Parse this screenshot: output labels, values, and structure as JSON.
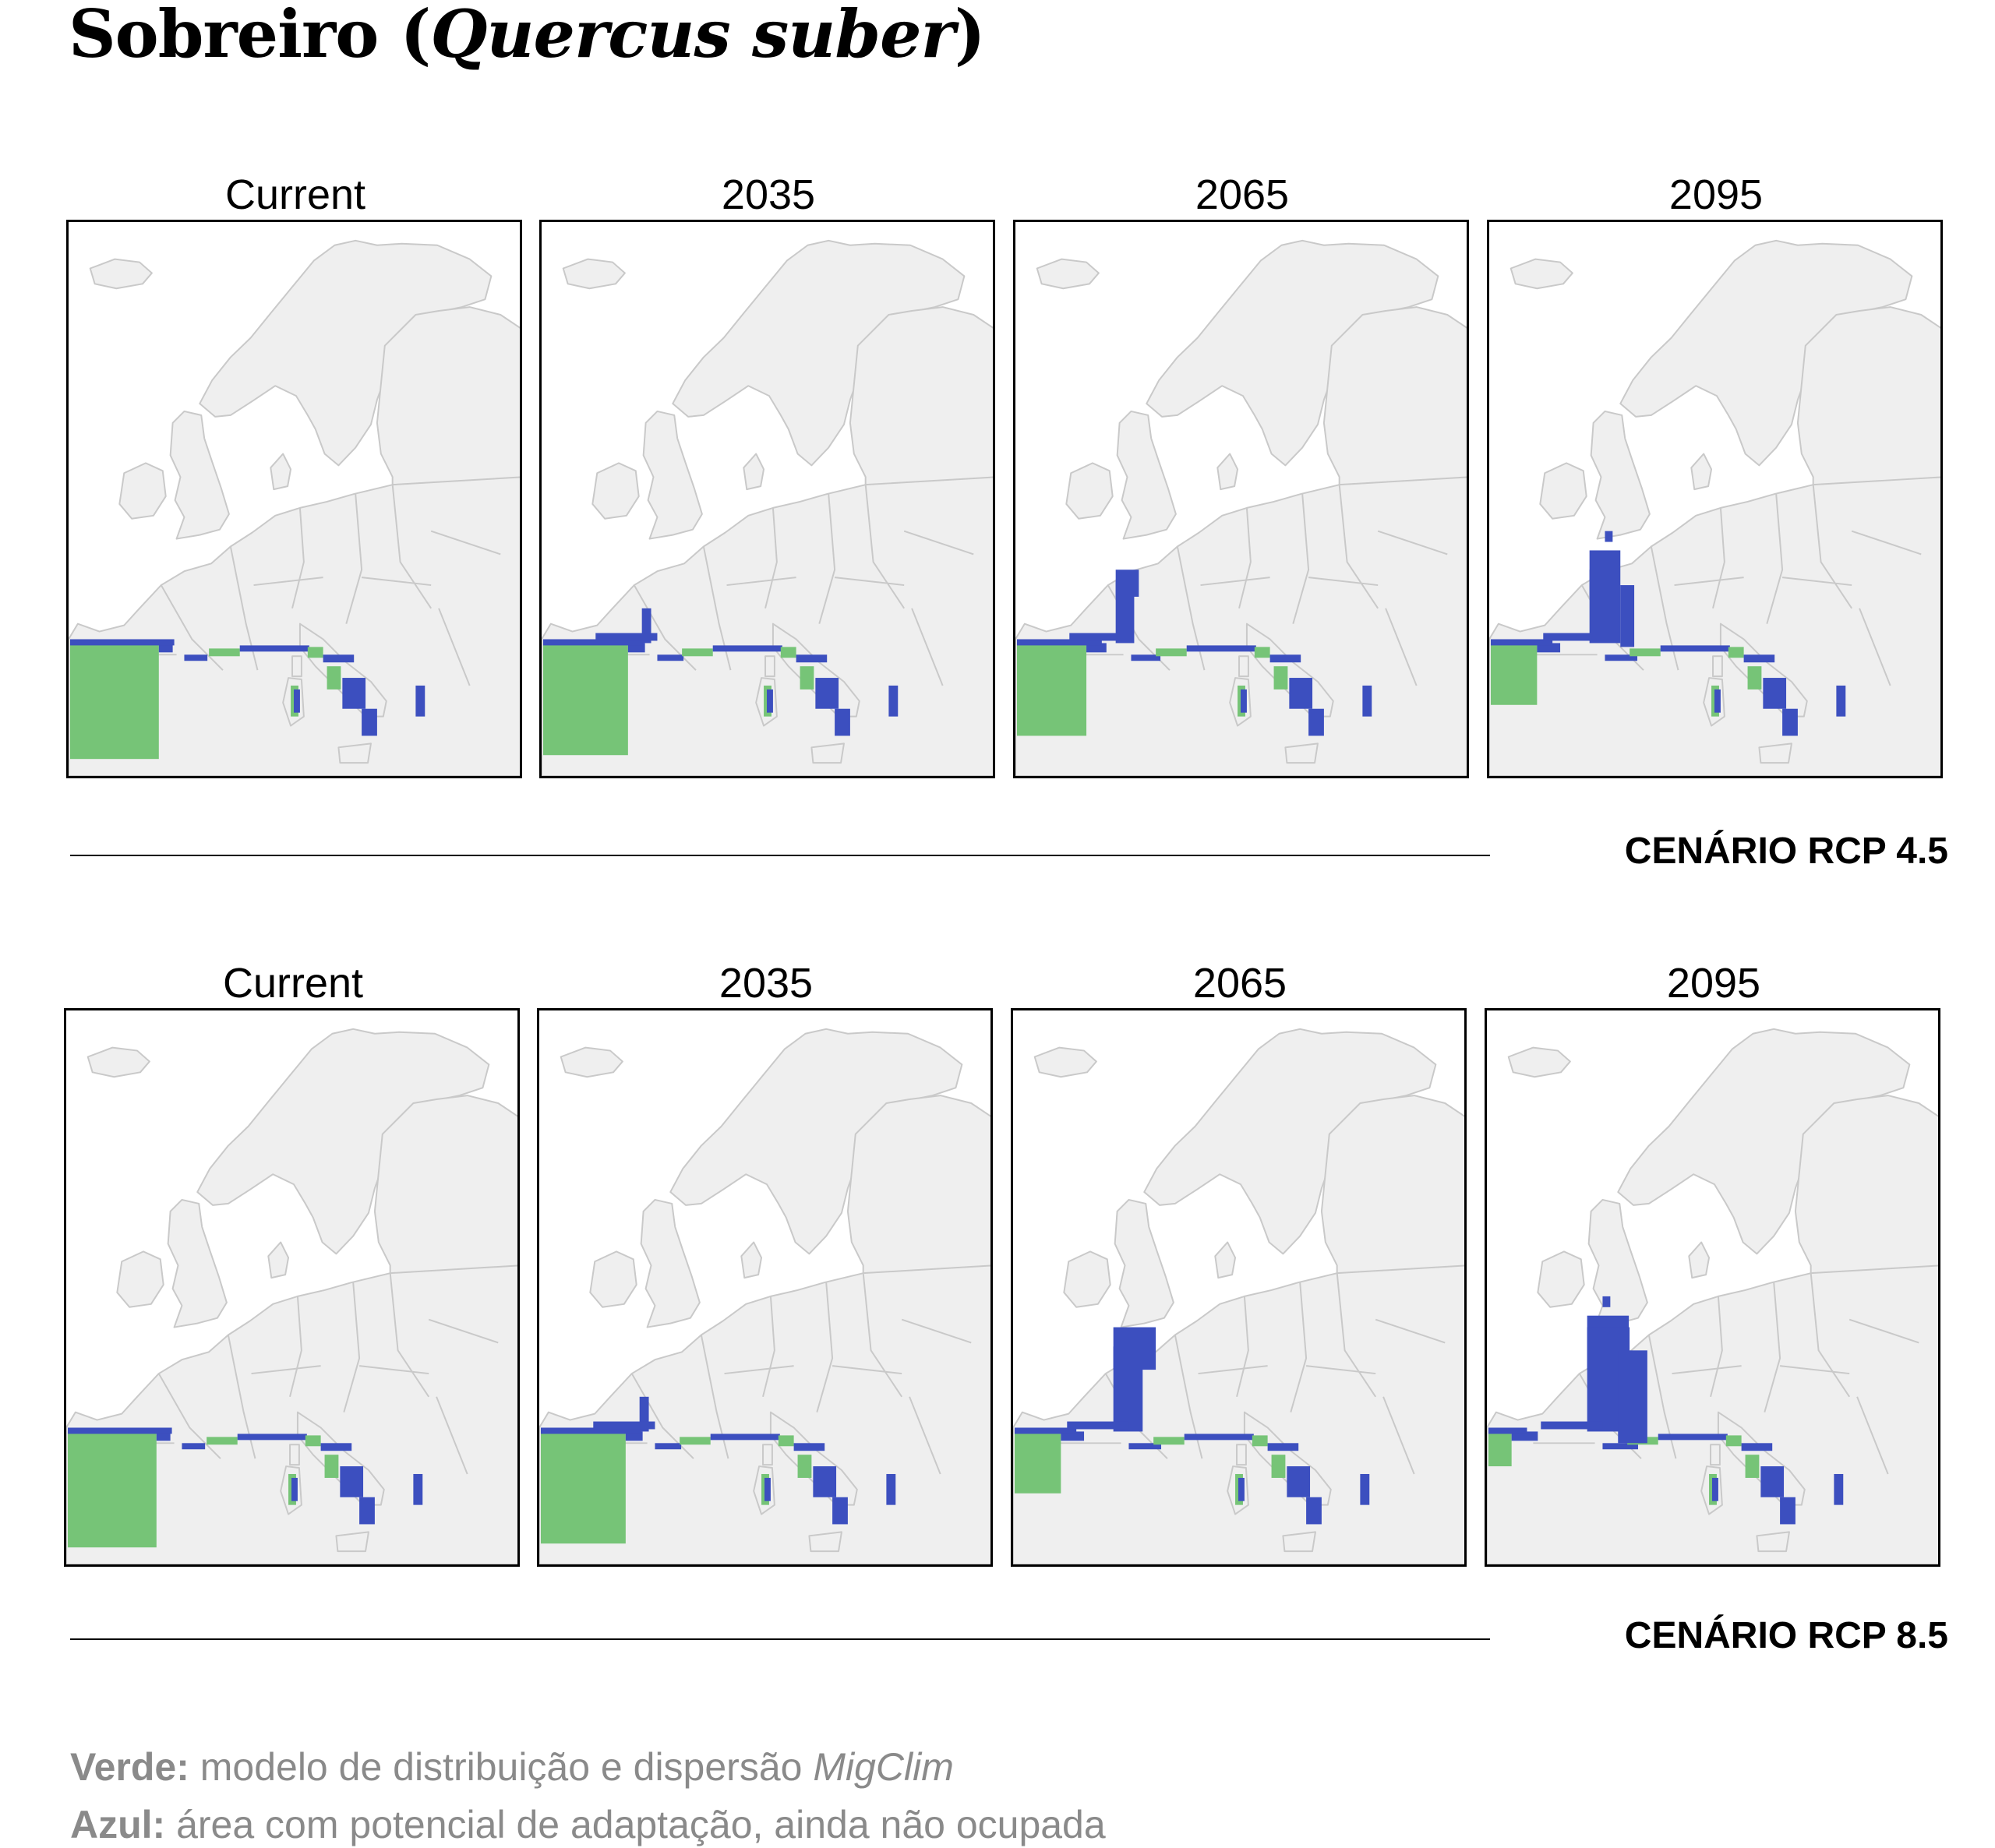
{
  "title": {
    "main": "Sobreiro (",
    "italic": "Quercus suber",
    "end": ")"
  },
  "scenarios": [
    {
      "label": "CENÁRIO RCP 4.5",
      "panels": [
        "Current",
        "2035",
        "2065",
        "2095"
      ]
    },
    {
      "label": "CENÁRIO RCP 8.5",
      "panels": [
        "Current",
        "2035",
        "2065",
        "2095"
      ]
    }
  ],
  "legend": {
    "green": {
      "key": "Verde:",
      "text": " modelo de distribuição e dispersão ",
      "model": "MigClim"
    },
    "blue": {
      "key": "Azul:",
      "text": " área com potencial de adaptação, ainda não ocupada"
    }
  },
  "colors": {
    "land": "#efefef",
    "border": "#c9c9c9",
    "green": "#76c477",
    "blue": "#3c4fbf"
  },
  "chart_data": {
    "type": "map",
    "species": "Quercus suber",
    "periods": [
      "Current",
      "2035",
      "2065",
      "2095"
    ],
    "scenarios": [
      "RCP 4.5",
      "RCP 8.5"
    ],
    "categories": [
      {
        "color": "#76c477",
        "meaning": "modelo de distribuição e dispersão MigClim"
      },
      {
        "color": "#3c4fbf",
        "meaning": "área com potencial de adaptação, ainda não ocupada"
      }
    ]
  }
}
